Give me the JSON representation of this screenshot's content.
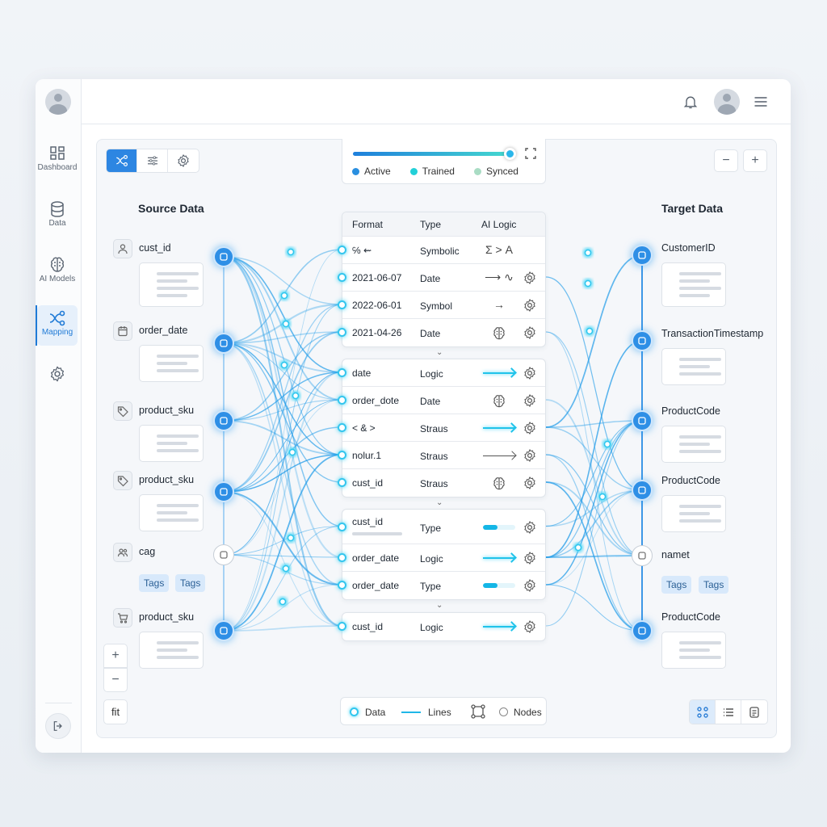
{
  "sidebar": {
    "items": [
      {
        "label": "Dashboard",
        "icon": "dashboard-icon"
      },
      {
        "label": "Data",
        "icon": "database-icon"
      },
      {
        "label": "AI Models",
        "icon": "brain-icon"
      },
      {
        "label": "Mapping",
        "icon": "mapping-icon",
        "active": true
      },
      {
        "label": "",
        "icon": "gear-icon"
      }
    ],
    "logout_icon": "logout-icon"
  },
  "header": {
    "icons": [
      "bell-icon",
      "avatar",
      "menu-icon"
    ]
  },
  "toolbar": {
    "modes": [
      "mapping-icon",
      "sliders-icon",
      "gear-icon"
    ],
    "active_mode": 0
  },
  "legend_top": {
    "slider_value": 100,
    "items": [
      {
        "label": "Active",
        "color": "#2a8fe0"
      },
      {
        "label": "Trained",
        "color": "#22d0d8"
      },
      {
        "label": "Synced",
        "color": "#a9dcc4"
      }
    ]
  },
  "zoom_top": {
    "minus": "−",
    "plus": "+"
  },
  "source": {
    "title": "Source Data",
    "items": [
      {
        "label": "cust_id",
        "icon": "user-icon"
      },
      {
        "label": "order_date",
        "icon": "calendar-icon"
      },
      {
        "label": "product_sku",
        "icon": "tag-icon"
      },
      {
        "label": "product_sku",
        "icon": "tag-icon"
      },
      {
        "label": "cag",
        "icon": "users-icon",
        "tags": [
          "Tags",
          "Tags"
        ]
      },
      {
        "label": "product_sku",
        "icon": "cart-icon"
      }
    ]
  },
  "target": {
    "title": "Target Data",
    "items": [
      {
        "label": "CustomerID"
      },
      {
        "label": "TransactionTimestamp"
      },
      {
        "label": "ProductCode"
      },
      {
        "label": "ProductCode"
      },
      {
        "label": "namet",
        "tags": [
          "Tags",
          "Tags"
        ]
      },
      {
        "label": "ProductCode"
      }
    ]
  },
  "table": {
    "headers": [
      "Format",
      "Type",
      "AI Logic"
    ],
    "groups": [
      [
        {
          "format": "℅ ⇜",
          "type": "Symbolic",
          "logic": "Σ > A",
          "logic_kind": "text"
        },
        {
          "format": "2021-06-07",
          "type": "Date",
          "logic": "⟶ ∿",
          "logic_kind": "text",
          "gear": true
        },
        {
          "format": "2022-06-01",
          "type": "Symbol",
          "logic": "→",
          "logic_kind": "text",
          "gear": true
        },
        {
          "format": "2021-04-26",
          "type": "Date",
          "logic_kind": "brain",
          "gear": true
        }
      ],
      [
        {
          "format": "date",
          "type": "Logic",
          "logic_kind": "glow-arrow",
          "gear": true
        },
        {
          "format": "order_dote",
          "type": "Date",
          "logic_kind": "brain",
          "gear": true
        },
        {
          "format": "<  &  >",
          "type": "Straus",
          "logic_kind": "glow-arrow",
          "gear": true
        },
        {
          "format": "nolur.1",
          "type": "Straus",
          "logic_kind": "gray-arrow",
          "gear": true
        },
        {
          "format": "cust_id",
          "type": "Straus",
          "logic_kind": "brain",
          "gear": true
        }
      ],
      [
        {
          "format": "cust_id",
          "type": "Type",
          "logic_kind": "progress",
          "progress": 45,
          "gear": true
        },
        {
          "format": "order_date",
          "type": "Logic",
          "logic_kind": "glow-arrow",
          "gear": true
        },
        {
          "format": "order_date",
          "type": "Type",
          "logic_kind": "progress",
          "progress": 45,
          "gear": true
        }
      ],
      [
        {
          "format": "cust_id",
          "type": "Logic",
          "logic_kind": "glow-arrow",
          "gear": true
        }
      ]
    ]
  },
  "left_zoom": {
    "plus": "+",
    "minus": "−",
    "fit": "fit"
  },
  "legend_bottom": {
    "items": [
      {
        "label": "Data"
      },
      {
        "label": "Lines"
      },
      {
        "label": "Nodes"
      }
    ]
  },
  "view_modes": {
    "items": [
      "grid-icon",
      "list-icon",
      "document-icon"
    ],
    "active": 0
  },
  "colors": {
    "accent": "#2d86e2",
    "glow": "#34c6ee"
  }
}
